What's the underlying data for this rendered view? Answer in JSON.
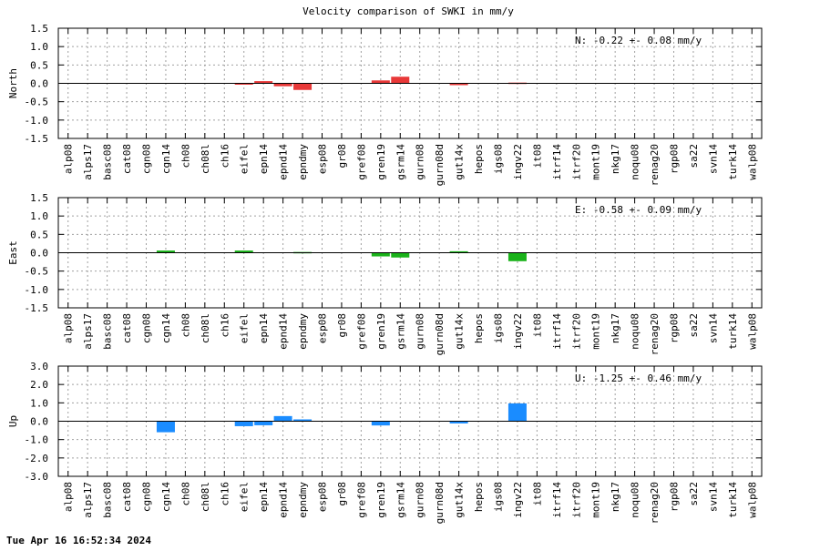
{
  "chart_data": {
    "type": "bar",
    "title": "Velocity comparison of SWKI in mm/y",
    "timestamp": "Tue Apr 16 16:52:34 2024",
    "categories": [
      "alp08",
      "alps17",
      "basc08",
      "cat08",
      "cgn08",
      "cgn14",
      "ch08",
      "ch08l",
      "ch16",
      "eifel",
      "epn14",
      "epnd14",
      "epndmy",
      "esp08",
      "gr08",
      "gref08",
      "gren19",
      "gsrm14",
      "gurn08",
      "gurn08d",
      "gut14x",
      "hepos",
      "igs08",
      "ingv22",
      "it08",
      "itrf14",
      "itrf20",
      "mont19",
      "nkg17",
      "noqu08",
      "renag20",
      "rgp08",
      "sa22",
      "svn14",
      "turk14",
      "walp08"
    ],
    "panels": [
      {
        "ylabel": "North",
        "annotation": "N:  -0.22 +-  0.08 mm/y",
        "ylim": [
          -1.5,
          1.5
        ],
        "yticks": [
          "1.5",
          "1.0",
          "0.5",
          "0.0",
          "-0.5",
          "-1.0",
          "-1.5"
        ],
        "color": "#e83838",
        "grid": true,
        "values": [
          0,
          0,
          0,
          0,
          0,
          0,
          0,
          0,
          0,
          -0.02,
          0.06,
          -0.08,
          -0.18,
          0,
          0,
          0,
          0.08,
          0.18,
          0,
          0,
          -0.05,
          0,
          0,
          0.02,
          0,
          0,
          0,
          0,
          0,
          0,
          0,
          0,
          0,
          0,
          0,
          0
        ]
      },
      {
        "ylabel": "East",
        "annotation": "E:  -0.58 +-  0.09 mm/y",
        "ylim": [
          -1.5,
          1.5
        ],
        "yticks": [
          "1.5",
          "1.0",
          "0.5",
          "0.0",
          "-0.5",
          "-1.0",
          "-1.5"
        ],
        "color": "#1ab21a",
        "grid": true,
        "values": [
          0,
          0,
          0,
          0,
          0,
          0.06,
          0,
          0,
          0,
          0.06,
          0,
          0,
          0.02,
          0,
          0,
          0,
          -0.1,
          -0.13,
          0,
          0,
          0.04,
          0,
          0,
          -0.23,
          0,
          0,
          0,
          0,
          0,
          0,
          0,
          0,
          0,
          0,
          0,
          0
        ]
      },
      {
        "ylabel": "Up",
        "annotation": "U:  -1.25 +-  0.46 mm/y",
        "ylim": [
          -3.0,
          3.0
        ],
        "yticks": [
          "3.0",
          "2.0",
          "1.0",
          "0.0",
          "-1.0",
          "-2.0",
          "-3.0"
        ],
        "color": "#1a8cff",
        "grid": true,
        "values": [
          0,
          0,
          0,
          0,
          0,
          -0.6,
          0,
          0,
          0,
          -0.27,
          -0.22,
          0.28,
          0.1,
          0,
          0,
          0,
          -0.23,
          0,
          0,
          0,
          -0.12,
          0,
          0,
          0.97,
          0,
          0,
          0,
          0,
          0,
          0,
          0,
          0,
          0,
          0,
          0,
          0
        ]
      }
    ]
  }
}
